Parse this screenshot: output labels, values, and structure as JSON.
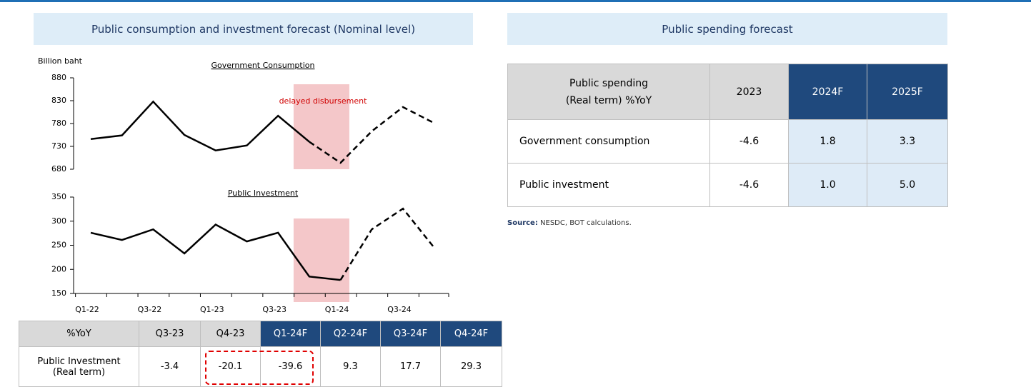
{
  "panels": [
    {
      "title": "Public consumption and investment forecast (Nominal level)"
    },
    {
      "title": "Public spending forecast"
    }
  ],
  "chart_data": [
    {
      "type": "line",
      "title": "Government Consumption",
      "y_label": "Billion baht",
      "annotation": "delayed disbursement",
      "categories": [
        "Q1-22",
        null,
        "Q3-22",
        null,
        "Q1-23",
        null,
        "Q3-23",
        null,
        "Q1-24",
        null,
        "Q3-24",
        null
      ],
      "series": [
        {
          "color": "#000000",
          "line_style": "solid",
          "values": [
            746,
            754,
            828,
            755,
            721,
            732,
            797,
            740,
            null,
            null,
            null,
            null
          ]
        },
        {
          "color": "#000000",
          "line_style": "dashed",
          "values": [
            null,
            null,
            null,
            null,
            null,
            null,
            null,
            740,
            694,
            763,
            816,
            781
          ]
        }
      ],
      "ylim": [
        680,
        880
      ],
      "yticks": [
        680,
        730,
        780,
        830,
        880
      ]
    },
    {
      "type": "line",
      "title": "Public Investment",
      "categories": [
        "Q1-22",
        null,
        "Q3-22",
        null,
        "Q1-23",
        null,
        "Q3-23",
        null,
        "Q1-24",
        null,
        "Q3-24",
        null
      ],
      "series": [
        {
          "color": "#000000",
          "line_style": "solid",
          "values": [
            276,
            261,
            283,
            233,
            293,
            258,
            276,
            185,
            178,
            null,
            null,
            null
          ]
        },
        {
          "color": "#000000",
          "line_style": "dashed",
          "values": [
            null,
            null,
            null,
            null,
            null,
            null,
            null,
            null,
            178,
            283,
            326,
            245
          ]
        }
      ],
      "ylim": [
        150,
        350
      ],
      "yticks": [
        150,
        200,
        250,
        300,
        350
      ]
    }
  ],
  "quarter_table": {
    "header": [
      "%YoY",
      "Q3-23",
      "Q4-23",
      "Q1-24F",
      "Q2-24F",
      "Q3-24F",
      "Q4-24F"
    ],
    "rows": [
      {
        "label": [
          "Public Investment",
          "(Real term)"
        ],
        "cells": [
          "-3.4",
          "-20.1",
          "-39.6",
          "9.3",
          "17.7",
          "29.3"
        ]
      }
    ]
  },
  "spending_table": {
    "header": [
      [
        "Public spending",
        "(Real term) %YoY"
      ],
      "2023",
      "2024F",
      "2025F"
    ],
    "rows": [
      {
        "label": "Government consumption",
        "cells": [
          "-4.6",
          "1.8",
          "3.3"
        ]
      },
      {
        "label": "Public investment",
        "cells": [
          "-4.6",
          "1.0",
          "5.0"
        ]
      }
    ]
  },
  "source": {
    "label": "Source:",
    "text": "NESDC, BOT calculations."
  }
}
